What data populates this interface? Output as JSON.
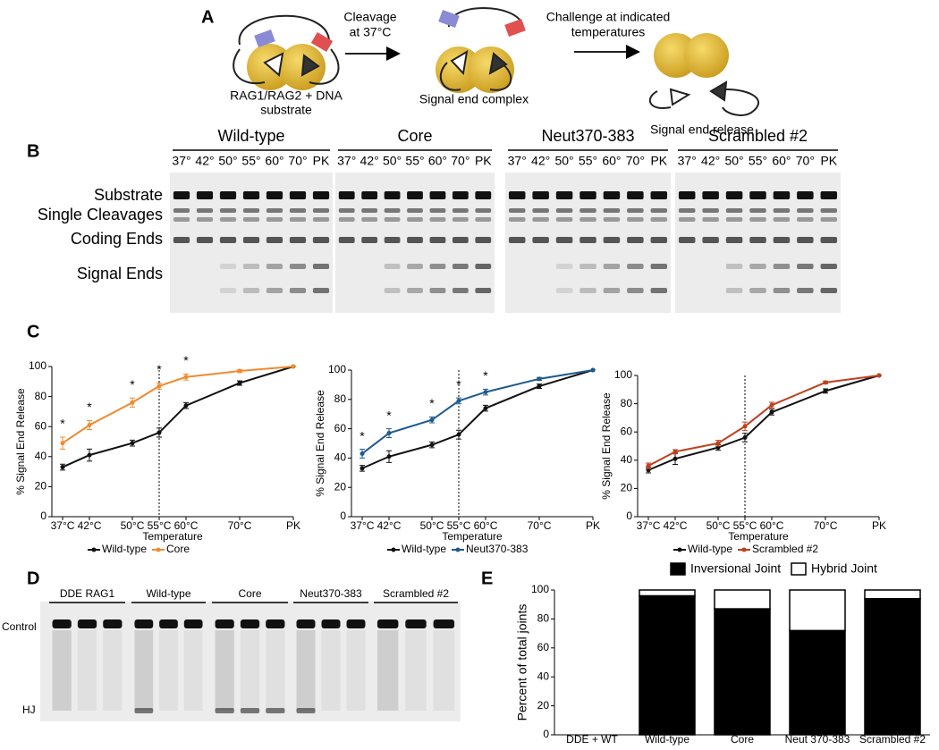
{
  "panel_letters": [
    "A",
    "B",
    "C",
    "D",
    "E"
  ],
  "diagram": {
    "substrate": [
      "RAG1/RAG2 + DNA",
      "substrate"
    ],
    "cleavage": [
      "Cleavage",
      "at 37°C"
    ],
    "complex": "Signal end complex",
    "challenge": [
      "Challenge at indicated",
      "temperatures"
    ],
    "release": "Signal end release"
  },
  "gel_b": {
    "groups": [
      "Wild-type",
      "Core",
      "Neut370-383",
      "Scrambled #2"
    ],
    "lanes": [
      "37°",
      "42°",
      "50°",
      "55°",
      "60°",
      "70°",
      "PK"
    ],
    "rows": [
      "Substrate",
      "Single Cleavages",
      "Coding Ends",
      "Signal Ends"
    ]
  },
  "gel_d": {
    "groups": [
      "DDE RAG1",
      "Wild-type",
      "Core",
      "Neut370-383",
      "Scrambled #2"
    ],
    "rows": [
      "Control",
      "HJ"
    ]
  },
  "chart_data": [
    {
      "type": "line",
      "x": [
        37,
        42,
        50,
        55,
        60,
        70,
        80
      ],
      "xlim": [
        35,
        80
      ],
      "xticks": [
        {
          "value": 37,
          "label": "37°C"
        },
        {
          "value": 42,
          "label": "42°C"
        },
        {
          "value": 50,
          "label": "50°C"
        },
        {
          "value": 55,
          "label": "55°C"
        },
        {
          "value": 60,
          "label": "60°C"
        },
        {
          "value": 70,
          "label": "70°C"
        },
        {
          "value": 80,
          "label": "PK"
        }
      ],
      "ylim": [
        0,
        100
      ],
      "yticks": [
        0,
        20,
        40,
        60,
        80,
        100
      ],
      "xlabel": "Temperature",
      "ylabel": "% Signal End Release",
      "reference_x": 55,
      "series": [
        {
          "name": "Wild-type",
          "color": "#111111",
          "values": [
            33,
            41,
            49,
            56,
            74,
            89,
            100
          ],
          "errors": [
            2,
            4,
            2,
            3,
            2,
            1.5,
            0
          ]
        },
        {
          "name": "Core",
          "color": "#f08a30",
          "values": [
            49,
            61,
            76,
            87,
            93,
            97,
            100
          ],
          "errors": [
            4,
            3,
            3,
            2,
            2,
            1,
            0
          ]
        }
      ],
      "annotations": [
        {
          "text": "*",
          "x": 37
        },
        {
          "text": "*",
          "x": 42
        },
        {
          "text": "*",
          "x": 50
        },
        {
          "text": "*",
          "x": 55
        },
        {
          "text": "*",
          "x": 60
        }
      ]
    },
    {
      "type": "line",
      "x": [
        37,
        42,
        50,
        55,
        60,
        70,
        80
      ],
      "xlim": [
        35,
        80
      ],
      "xticks": [
        {
          "value": 37,
          "label": "37°C"
        },
        {
          "value": 42,
          "label": "42°C"
        },
        {
          "value": 50,
          "label": "50°C"
        },
        {
          "value": 55,
          "label": "55°C"
        },
        {
          "value": 60,
          "label": "60°C"
        },
        {
          "value": 70,
          "label": "70°C"
        },
        {
          "value": 80,
          "label": "PK"
        }
      ],
      "ylim": [
        0,
        100
      ],
      "yticks": [
        0,
        20,
        40,
        60,
        80,
        100
      ],
      "xlabel": "Temperature",
      "ylabel": "% Signal End Release",
      "reference_x": 55,
      "series": [
        {
          "name": "Wild-type",
          "color": "#111111",
          "values": [
            33,
            41,
            49,
            56,
            74,
            89,
            100
          ],
          "errors": [
            2,
            4,
            2,
            3,
            2,
            1.5,
            0
          ]
        },
        {
          "name": "Neut370-383",
          "color": "#1f5a8e",
          "values": [
            43,
            57,
            66,
            79,
            85,
            94,
            100
          ],
          "errors": [
            3,
            3,
            2,
            2,
            2,
            1,
            0
          ]
        }
      ],
      "annotations": [
        {
          "text": "*",
          "x": 37
        },
        {
          "text": "*",
          "x": 42
        },
        {
          "text": "*",
          "x": 50
        },
        {
          "text": "*",
          "x": 55
        },
        {
          "text": "*",
          "x": 60
        }
      ]
    },
    {
      "type": "line",
      "x": [
        37,
        42,
        50,
        55,
        60,
        70,
        80
      ],
      "xlim": [
        35,
        80
      ],
      "xticks": [
        {
          "value": 37,
          "label": "37°C"
        },
        {
          "value": 42,
          "label": "42°C"
        },
        {
          "value": 50,
          "label": "50°C"
        },
        {
          "value": 55,
          "label": "55°C"
        },
        {
          "value": 60,
          "label": "60°C"
        },
        {
          "value": 70,
          "label": "70°C"
        },
        {
          "value": 80,
          "label": "PK"
        }
      ],
      "ylim": [
        0,
        100
      ],
      "yticks": [
        0,
        20,
        40,
        60,
        80,
        100
      ],
      "xlabel": "Temperature",
      "ylabel": "% Signal End Release",
      "reference_x": 55,
      "series": [
        {
          "name": "Wild-type",
          "color": "#111111",
          "values": [
            33,
            41,
            49,
            56,
            74,
            89,
            100
          ],
          "errors": [
            2,
            4,
            2,
            3,
            2,
            1.5,
            0
          ]
        },
        {
          "name": "Scrambled #2",
          "color": "#c0401e",
          "values": [
            36,
            46,
            52,
            64,
            79,
            95,
            100
          ],
          "errors": [
            2,
            1.5,
            2,
            3,
            2,
            1,
            0
          ]
        }
      ],
      "annotations": []
    },
    {
      "type": "bar",
      "stacked": true,
      "categories": [
        "DDE + WT",
        "Wild-type",
        "Core",
        "Neut 370-383",
        "Scrambled #2"
      ],
      "ylim": [
        0,
        100
      ],
      "yticks": [
        0,
        20,
        40,
        60,
        80,
        100
      ],
      "ylabel": "Percent of total joints",
      "series": [
        {
          "name": "Inversional Joint",
          "color": "#000000",
          "values": [
            0,
            96,
            87,
            72,
            94
          ]
        },
        {
          "name": "Hybrid Joint",
          "color": "#ffffff",
          "values": [
            0,
            4,
            13,
            28,
            6
          ]
        }
      ]
    }
  ]
}
